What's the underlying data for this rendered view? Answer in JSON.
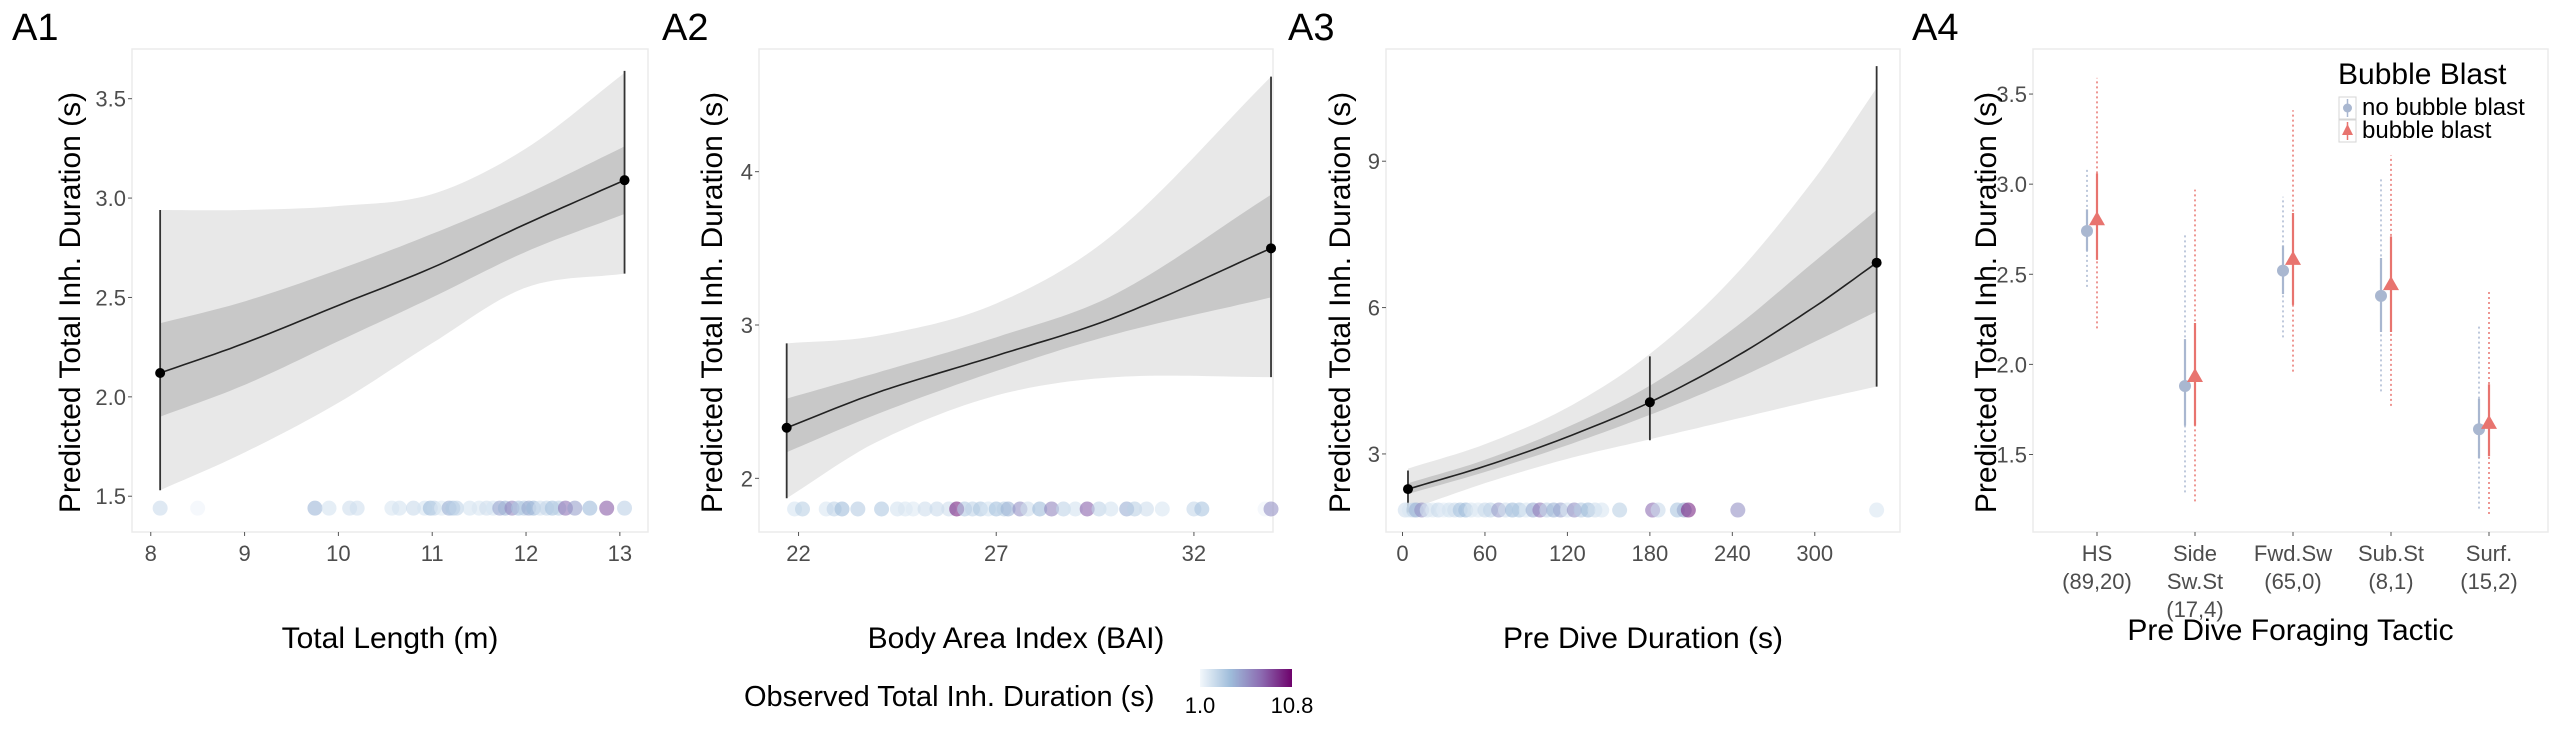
{
  "colorbar": {
    "title": "Observed Total Inh. Duration (s)",
    "min_label": "1.0",
    "max_label": "10.8",
    "min": 1.0,
    "max": 10.8,
    "colors": [
      "#f3f8fc",
      "#9ebcda",
      "#8c6bb1",
      "#6e016b"
    ]
  },
  "chart_data": [
    {
      "id": "A1",
      "panel_label": "A1",
      "type": "line",
      "title": "",
      "xlabel": "Total Length (m)",
      "ylabel": "Predicted Total Inh. Duration (s)",
      "xlim": [
        7.8,
        13.3
      ],
      "ylim": [
        1.32,
        3.75
      ],
      "xticks": [
        8,
        9,
        10,
        11,
        12,
        13
      ],
      "xtick_labels": [
        "8",
        "9",
        "10",
        "11",
        "12",
        "13"
      ],
      "yticks": [
        1.5,
        2.0,
        2.5,
        3.0,
        3.5
      ],
      "ytick_labels": [
        "1.5",
        "2.0",
        "2.5",
        "3.0",
        "3.5"
      ],
      "grid": false,
      "fit": {
        "x": [
          8.1,
          9,
          10,
          11,
          12,
          13.05
        ],
        "y": [
          2.12,
          2.27,
          2.46,
          2.65,
          2.87,
          3.09
        ],
        "inner_lo": [
          1.9,
          2.06,
          2.28,
          2.5,
          2.73,
          2.92
        ],
        "inner_hi": [
          2.37,
          2.48,
          2.64,
          2.82,
          3.02,
          3.26
        ],
        "outer_lo": [
          1.53,
          1.72,
          1.97,
          2.27,
          2.55,
          2.62
        ],
        "outer_hi": [
          2.94,
          2.94,
          2.96,
          3.02,
          3.25,
          3.63
        ]
      },
      "points": [
        {
          "x": 8.1,
          "y": 2.12,
          "lo": 1.53,
          "hi": 2.94
        },
        {
          "x": 13.05,
          "y": 3.09,
          "lo": 2.62,
          "hi": 3.64
        }
      ],
      "rug": {
        "y": 1.44,
        "x": [
          8.1,
          8.5,
          9.75,
          9.9,
          10.12,
          10.2,
          10.57,
          10.65,
          10.8,
          10.92,
          10.98,
          11.02,
          11.1,
          11.18,
          11.22,
          11.26,
          11.4,
          11.5,
          11.58,
          11.65,
          11.72,
          11.78,
          11.85,
          11.92,
          11.98,
          12.03,
          12.08,
          12.15,
          12.22,
          12.28,
          12.35,
          12.42,
          12.52,
          12.68,
          12.86,
          13.05
        ],
        "v": [
          2.6,
          1.2,
          4.5,
          2.2,
          2.4,
          2.3,
          2.0,
          2.2,
          2.6,
          2.1,
          4.2,
          3.0,
          1.8,
          4.8,
          3.6,
          3.0,
          2.2,
          2.0,
          2.4,
          2.1,
          5.2,
          4.6,
          6.4,
          3.8,
          3.4,
          5.0,
          4.4,
          2.3,
          2.8,
          4.0,
          3.2,
          7.2,
          5.4,
          4.3,
          8.0,
          3.1
        ]
      }
    },
    {
      "id": "A2",
      "panel_label": "A2",
      "type": "line",
      "title": "",
      "xlabel": "Body Area Index (BAI)",
      "ylabel": "Predicted Total Inh. Duration (s)",
      "xlim": [
        21.0,
        34.0
      ],
      "ylim": [
        1.65,
        4.8
      ],
      "xticks": [
        22,
        27,
        32
      ],
      "xtick_labels": [
        "22",
        "27",
        "32"
      ],
      "yticks": [
        2,
        3,
        4
      ],
      "ytick_labels": [
        "2",
        "3",
        "4"
      ],
      "grid": false,
      "fit": {
        "x": [
          21.7,
          24,
          27,
          30,
          33.95
        ],
        "y": [
          2.33,
          2.56,
          2.8,
          3.05,
          3.5
        ],
        "inner_lo": [
          2.17,
          2.42,
          2.7,
          2.94,
          3.18
        ],
        "inner_hi": [
          2.52,
          2.69,
          2.92,
          3.2,
          3.85
        ],
        "outer_lo": [
          1.87,
          2.24,
          2.54,
          2.66,
          2.66
        ],
        "outer_hi": [
          2.88,
          2.93,
          3.14,
          3.6,
          4.62
        ]
      },
      "points": [
        {
          "x": 21.7,
          "y": 2.33,
          "lo": 1.87,
          "hi": 2.88
        },
        {
          "x": 33.95,
          "y": 3.5,
          "lo": 2.66,
          "hi": 4.62
        }
      ],
      "rug": {
        "y": 1.8,
        "x": [
          21.9,
          22.1,
          22.7,
          22.9,
          23.1,
          23.5,
          24.1,
          24.5,
          24.7,
          24.9,
          25.2,
          25.5,
          25.8,
          26.0,
          26.2,
          26.4,
          26.6,
          26.8,
          27.0,
          27.2,
          27.3,
          27.6,
          27.8,
          28.1,
          28.4,
          28.7,
          29.0,
          29.3,
          29.6,
          29.9,
          30.3,
          30.5,
          30.8,
          31.2,
          32.0,
          32.2,
          33.8,
          33.95
        ],
        "v": [
          2.1,
          3.2,
          2.0,
          3.0,
          4.2,
          3.4,
          3.6,
          2.2,
          2.0,
          1.8,
          2.4,
          2.6,
          2.4,
          9.8,
          3.5,
          3.0,
          3.6,
          2.1,
          4.0,
          3.2,
          4.6,
          6.0,
          2.4,
          4.2,
          6.5,
          3.0,
          2.2,
          7.8,
          3.0,
          2.2,
          4.8,
          3.2,
          2.4,
          2.0,
          2.8,
          3.8,
          1.2,
          6.0
        ]
      }
    },
    {
      "id": "A3",
      "panel_label": "A3",
      "type": "line",
      "title": "",
      "xlabel": "Pre Dive Duration (s)",
      "ylabel": "Predicted Total Inh. Duration (s)",
      "xlim": [
        -12,
        362
      ],
      "ylim": [
        1.4,
        11.3
      ],
      "xticks": [
        0,
        60,
        120,
        180,
        240,
        300
      ],
      "xtick_labels": [
        "0",
        "60",
        "120",
        "180",
        "240",
        "300"
      ],
      "yticks": [
        3,
        6,
        9
      ],
      "ytick_labels": [
        "3",
        "6",
        "9"
      ],
      "grid": false,
      "fit": {
        "x": [
          4,
          60,
          120,
          180,
          240,
          300,
          345
        ],
        "y": [
          2.28,
          2.75,
          3.35,
          4.06,
          4.95,
          6.02,
          6.92
        ],
        "inner_lo": [
          2.18,
          2.63,
          3.18,
          3.8,
          4.5,
          5.3,
          5.92
        ],
        "inner_hi": [
          2.4,
          2.88,
          3.55,
          4.4,
          5.55,
          6.95,
          8.0
        ],
        "outer_lo": [
          1.85,
          2.4,
          2.9,
          3.3,
          3.7,
          4.1,
          4.38
        ],
        "outer_hi": [
          2.7,
          3.2,
          3.95,
          5.05,
          6.6,
          8.65,
          10.5
        ]
      },
      "points": [
        {
          "x": 4,
          "y": 2.28,
          "lo": 1.8,
          "hi": 2.66
        },
        {
          "x": 180,
          "y": 4.06,
          "lo": 3.28,
          "hi": 5.0
        },
        {
          "x": 345,
          "y": 6.92,
          "lo": 4.38,
          "hi": 10.95
        }
      ],
      "rug": {
        "y": 1.85,
        "x": [
          2,
          5,
          8,
          10,
          14,
          18,
          22,
          26,
          30,
          34,
          38,
          42,
          46,
          50,
          55,
          60,
          64,
          70,
          75,
          80,
          85,
          90,
          95,
          100,
          105,
          110,
          115,
          120,
          125,
          130,
          135,
          140,
          145,
          158,
          182,
          186,
          200,
          205,
          208,
          244,
          345
        ],
        "v": [
          2.4,
          2.0,
          3.0,
          4.6,
          6.0,
          2.2,
          1.8,
          2.6,
          1.6,
          2.2,
          2.4,
          3.8,
          4.2,
          2.0,
          1.8,
          2.6,
          3.0,
          5.6,
          2.4,
          4.2,
          3.6,
          2.0,
          4.8,
          7.0,
          3.0,
          4.6,
          5.2,
          2.2,
          6.0,
          3.4,
          4.2,
          2.4,
          2.0,
          3.2,
          7.4,
          2.6,
          3.8,
          5.0,
          9.6,
          6.0,
          2.0
        ]
      }
    },
    {
      "id": "A4",
      "panel_label": "A4",
      "type": "scatter",
      "title": "",
      "xlabel": "Pre Dive Foraging Tactic",
      "ylabel": "Predicted Total Inh. Duration (s)",
      "ylim": [
        1.07,
        3.75
      ],
      "yticks": [
        1.5,
        2.0,
        2.5,
        3.0,
        3.5
      ],
      "ytick_labels": [
        "1.5",
        "2.0",
        "2.5",
        "3.0",
        "3.5"
      ],
      "grid": false,
      "categories": [
        "HS (89,20)",
        "Side Sw.St (17,4)",
        "Fwd.Sw (65,0)",
        "Sub.St (8,1)",
        "Surf. (15,2)"
      ],
      "category_label_lines": [
        [
          "HS",
          "(89,20)"
        ],
        [
          "Side",
          "Sw.St",
          "(17,4)"
        ],
        [
          "Fwd.Sw",
          "(65,0)"
        ],
        [
          "Sub.St",
          "(8,1)"
        ],
        [
          "Surf.",
          "(15,2)"
        ]
      ],
      "legend": {
        "title": "Bubble Blast",
        "position": "top-right"
      },
      "series": [
        {
          "name": "no bubble blast",
          "color": "#a9b7d0",
          "marker": "circle",
          "values": [
            2.74,
            1.88,
            2.52,
            2.38,
            1.64
          ],
          "inner_lo": [
            2.63,
            1.66,
            2.39,
            2.18,
            1.48
          ],
          "inner_hi": [
            2.86,
            2.14,
            2.66,
            2.59,
            1.81
          ],
          "outer_lo": [
            2.43,
            1.29,
            2.15,
            1.85,
            1.2
          ],
          "outer_hi": [
            3.09,
            2.73,
            2.93,
            3.03,
            2.21
          ]
        },
        {
          "name": "bubble blast",
          "color": "#e8746f",
          "marker": "triangle",
          "values": [
            2.8,
            1.93,
            2.58,
            2.44,
            1.67
          ],
          "inner_lo": [
            2.58,
            1.66,
            2.33,
            2.18,
            1.49
          ],
          "inner_hi": [
            3.06,
            2.23,
            2.84,
            2.71,
            1.89
          ],
          "outer_lo": [
            2.2,
            1.24,
            1.96,
            1.77,
            1.17
          ],
          "outer_hi": [
            3.59,
            2.97,
            3.41,
            3.16,
            2.41
          ]
        }
      ]
    }
  ]
}
